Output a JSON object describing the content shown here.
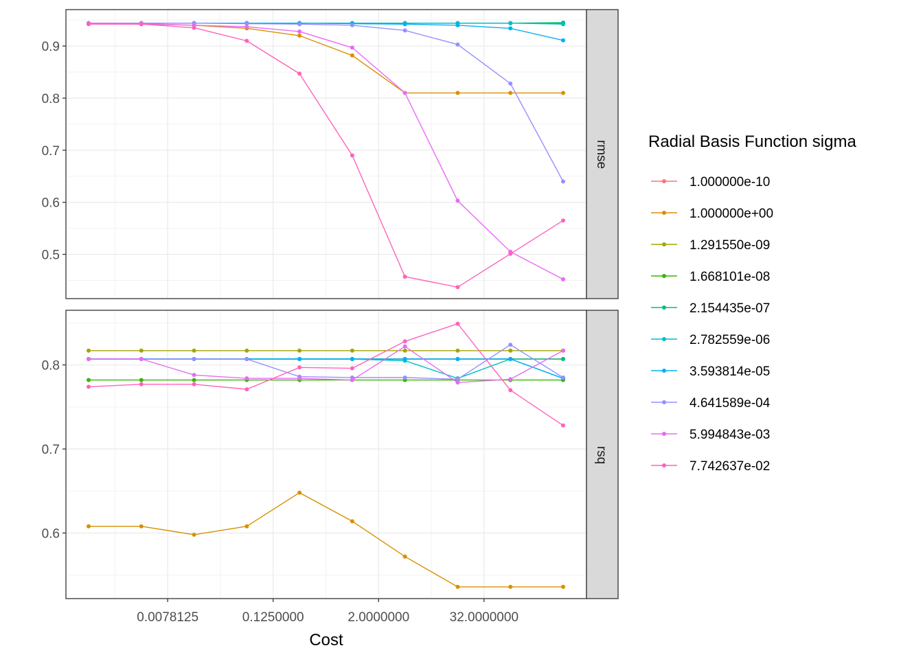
{
  "chart_data": {
    "type": "line",
    "xlabel": "Cost",
    "x_scale": "log2",
    "x": [
      0.0009765625,
      0.00390625,
      0.015625,
      0.0625,
      0.25,
      1,
      4,
      16,
      64,
      256
    ],
    "x_tick_labels": [
      "0.0078125",
      "0.1250000",
      "2.0000000",
      "32.0000000"
    ],
    "x_tick_values": [
      0.0078125,
      0.125,
      2,
      32
    ],
    "legend_title": "Radial Basis Function sigma",
    "legend_position": "right",
    "grid": true,
    "colors": [
      "#F8766D",
      "#D89000",
      "#A3A500",
      "#39B600",
      "#00BF7D",
      "#00BFC4",
      "#00B0F6",
      "#9590FF",
      "#E76BF3",
      "#FF62BC"
    ],
    "series_names": [
      "1.000000e-10",
      "1.000000e+00",
      "1.291550e-09",
      "1.668101e-08",
      "2.154435e-07",
      "2.782559e-06",
      "3.593814e-05",
      "4.641589e-04",
      "5.994843e-03",
      "7.742637e-02"
    ],
    "panels": [
      {
        "strip": "rmse",
        "ylim": [
          0.415,
          0.97
        ],
        "y_ticks": [
          0.5,
          0.6,
          0.7,
          0.8,
          0.9
        ],
        "y_tick_labels": [
          "0.5",
          "0.6",
          "0.7",
          "0.8",
          "0.9"
        ],
        "series": [
          [
            0.944,
            0.944,
            0.944,
            0.944,
            0.944,
            0.944,
            0.944,
            0.944,
            0.944,
            0.944
          ],
          [
            0.944,
            0.942,
            0.94,
            0.934,
            0.92,
            0.882,
            0.81,
            0.81,
            0.81,
            0.81
          ],
          [
            0.944,
            0.944,
            0.944,
            0.944,
            0.944,
            0.944,
            0.944,
            0.944,
            0.944,
            0.944
          ],
          [
            0.944,
            0.944,
            0.944,
            0.944,
            0.944,
            0.944,
            0.944,
            0.944,
            0.944,
            0.944
          ],
          [
            0.944,
            0.944,
            0.944,
            0.944,
            0.944,
            0.944,
            0.944,
            0.944,
            0.944,
            0.945
          ],
          [
            0.944,
            0.944,
            0.944,
            0.944,
            0.944,
            0.944,
            0.944,
            0.944,
            0.944,
            0.942
          ],
          [
            0.944,
            0.944,
            0.944,
            0.944,
            0.944,
            0.943,
            0.942,
            0.94,
            0.934,
            0.911
          ],
          [
            0.944,
            0.944,
            0.944,
            0.943,
            0.942,
            0.94,
            0.93,
            0.903,
            0.828,
            0.64
          ],
          [
            0.944,
            0.943,
            0.94,
            0.937,
            0.928,
            0.897,
            0.81,
            0.603,
            0.505,
            0.452
          ],
          [
            0.942,
            0.942,
            0.935,
            0.91,
            0.847,
            0.69,
            0.457,
            0.437,
            0.501,
            0.565
          ]
        ]
      },
      {
        "strip": "rsq",
        "ylim": [
          0.522,
          0.865
        ],
        "y_ticks": [
          0.6,
          0.7,
          0.8
        ],
        "y_tick_labels": [
          "0.6",
          "0.7",
          "0.8"
        ],
        "series": [
          [
            0.807,
            0.807,
            0.807,
            0.807,
            0.807,
            0.807,
            0.807,
            0.807,
            0.807,
            0.807
          ],
          [
            0.608,
            0.608,
            0.598,
            0.608,
            0.648,
            0.614,
            0.572,
            0.536,
            0.536,
            0.536
          ],
          [
            0.817,
            0.817,
            0.817,
            0.817,
            0.817,
            0.817,
            0.817,
            0.817,
            0.817,
            0.817
          ],
          [
            0.782,
            0.782,
            0.782,
            0.782,
            0.782,
            0.782,
            0.782,
            0.782,
            0.782,
            0.782
          ],
          [
            0.807,
            0.807,
            0.807,
            0.807,
            0.807,
            0.807,
            0.807,
            0.807,
            0.807,
            0.807
          ],
          [
            0.807,
            0.807,
            0.807,
            0.807,
            0.807,
            0.807,
            0.805,
            0.784,
            0.807,
            0.784
          ],
          [
            0.807,
            0.807,
            0.807,
            0.807,
            0.807,
            0.807,
            0.807,
            0.807,
            0.807,
            0.784
          ],
          [
            0.807,
            0.807,
            0.807,
            0.807,
            0.786,
            0.785,
            0.785,
            0.783,
            0.824,
            0.785
          ],
          [
            0.807,
            0.807,
            0.788,
            0.784,
            0.784,
            0.782,
            0.822,
            0.779,
            0.783,
            0.817
          ],
          [
            0.774,
            0.777,
            0.777,
            0.771,
            0.797,
            0.796,
            0.828,
            0.849,
            0.77,
            0.728
          ]
        ]
      }
    ]
  }
}
